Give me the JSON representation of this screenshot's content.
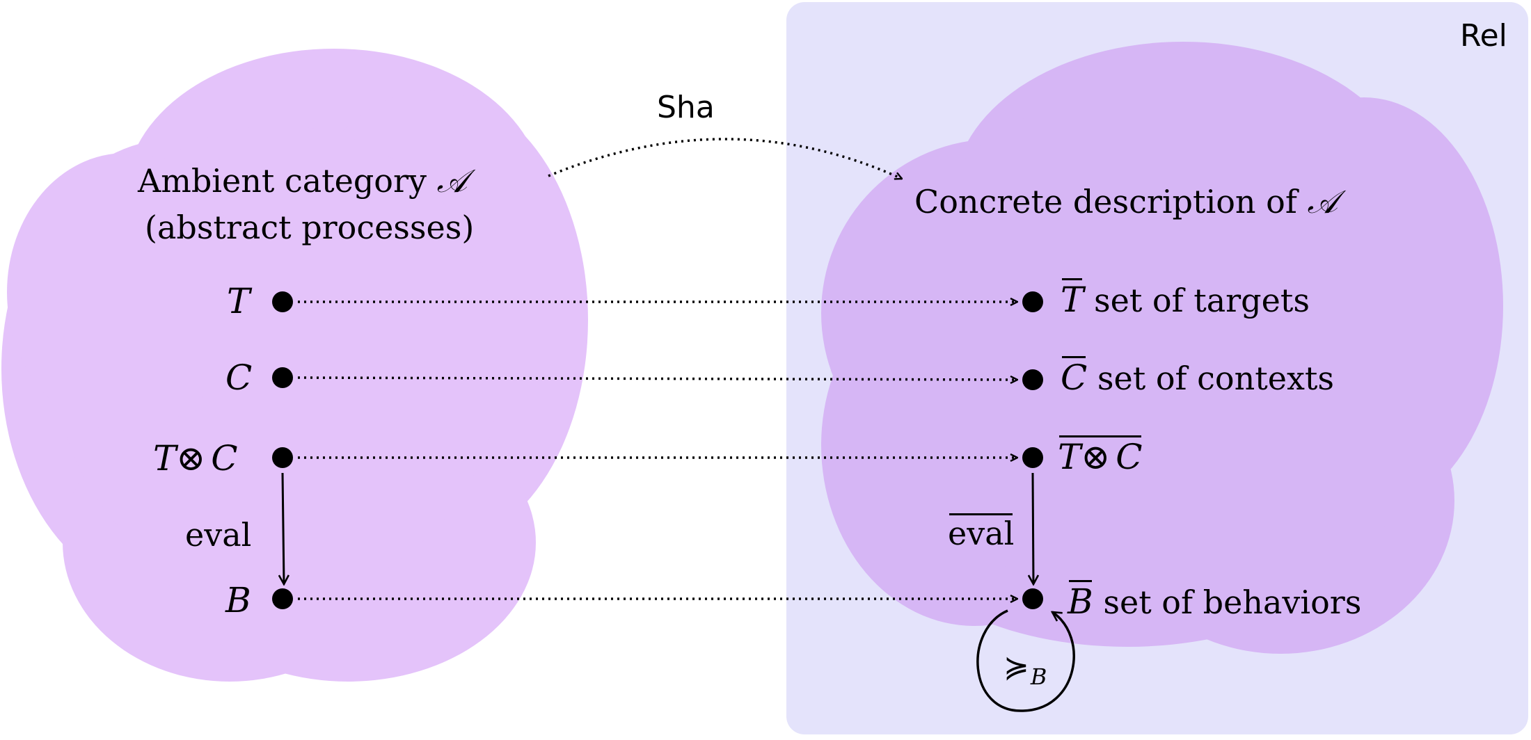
{
  "diagram": {
    "colors": {
      "left_cloud": "#e4c3fa",
      "right_cloud": "#d6b6f5",
      "rel_box": "#e4e3fb",
      "stroke": "#000000"
    },
    "rel_box": {
      "label": "Rel"
    },
    "sha_arrow": {
      "label": "Sha"
    },
    "left": {
      "title_line1": "Ambient category",
      "title_symbol": "𝒜",
      "title_line2": "(abstract processes)",
      "objects": {
        "T": "T",
        "C": "C",
        "TC_left": "T",
        "TC_op": "⊗",
        "TC_right": "C",
        "B": "B"
      },
      "eval_label": "eval"
    },
    "right": {
      "title": "Concrete description of",
      "title_symbol": "𝒜",
      "objects": {
        "T": {
          "symbol": "T",
          "text": "set of targets"
        },
        "C": {
          "symbol": "C",
          "text": "set of contexts"
        },
        "TC": {
          "left": "T",
          "op": "⊗",
          "right": "C"
        },
        "B": {
          "symbol": "B",
          "text": "set of behaviors"
        }
      },
      "eval_label": "eval",
      "loop_symbol": "≽",
      "loop_subscript": "B"
    }
  }
}
